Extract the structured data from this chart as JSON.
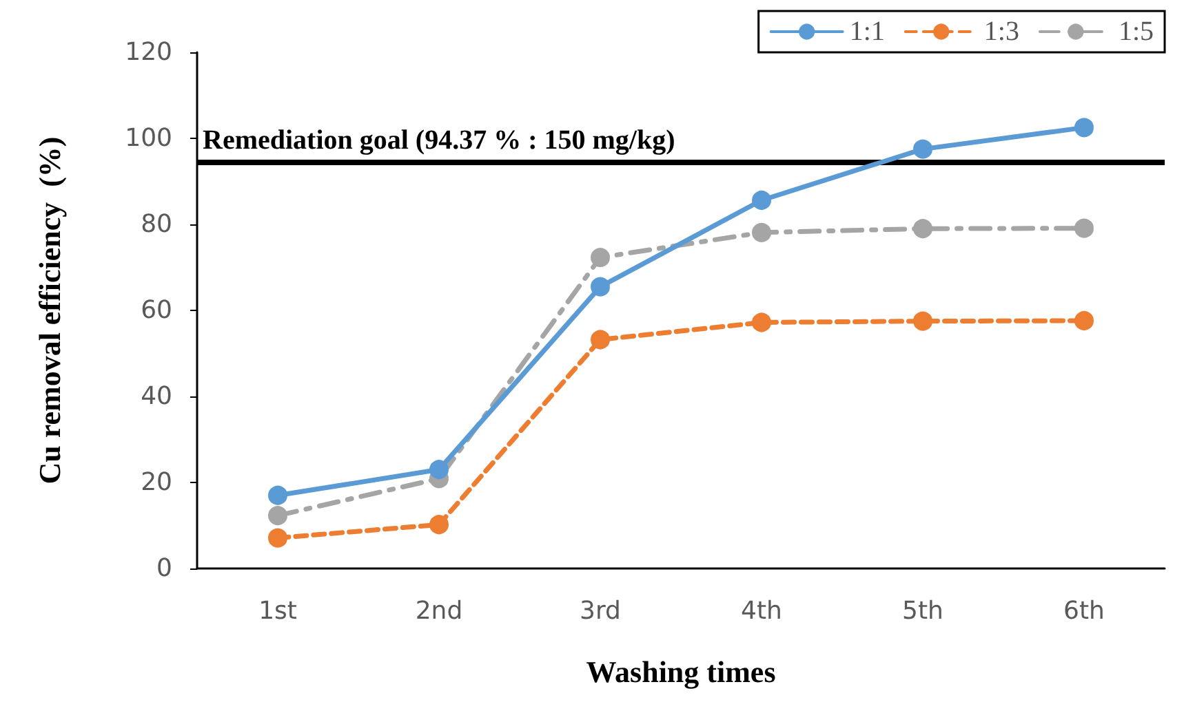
{
  "chart_data": {
    "type": "line",
    "xlabel": "Washing times",
    "ylabel": "Cu removal efficiency  (%)",
    "categories": [
      "1st",
      "2nd",
      "3rd",
      "4th",
      "5th",
      "6th"
    ],
    "series": [
      {
        "name": "1:1",
        "color": "#5b9bd5",
        "line_style": "solid",
        "values": [
          17.0,
          23.0,
          65.5,
          85.6,
          97.5,
          102.5
        ]
      },
      {
        "name": "1:3",
        "color": "#ed7d31",
        "line_style": "dashed",
        "values": [
          7.1,
          10.2,
          53.2,
          57.2,
          57.5,
          57.6
        ]
      },
      {
        "name": "1:5",
        "color": "#a5a5a5",
        "line_style": "dashdot",
        "values": [
          12.3,
          20.9,
          72.3,
          78.1,
          79.0,
          79.1
        ]
      }
    ],
    "ylim": [
      0,
      120
    ],
    "yticks": [
      0,
      20,
      40,
      60,
      80,
      100,
      120
    ],
    "ref_lines": [
      {
        "axis": "y",
        "value": 94.37,
        "label": "Remediation goal (94.37 % : 150 mg/kg)",
        "color": "#000000"
      }
    ],
    "marker": "circle",
    "grid": false,
    "legend": "top right"
  }
}
